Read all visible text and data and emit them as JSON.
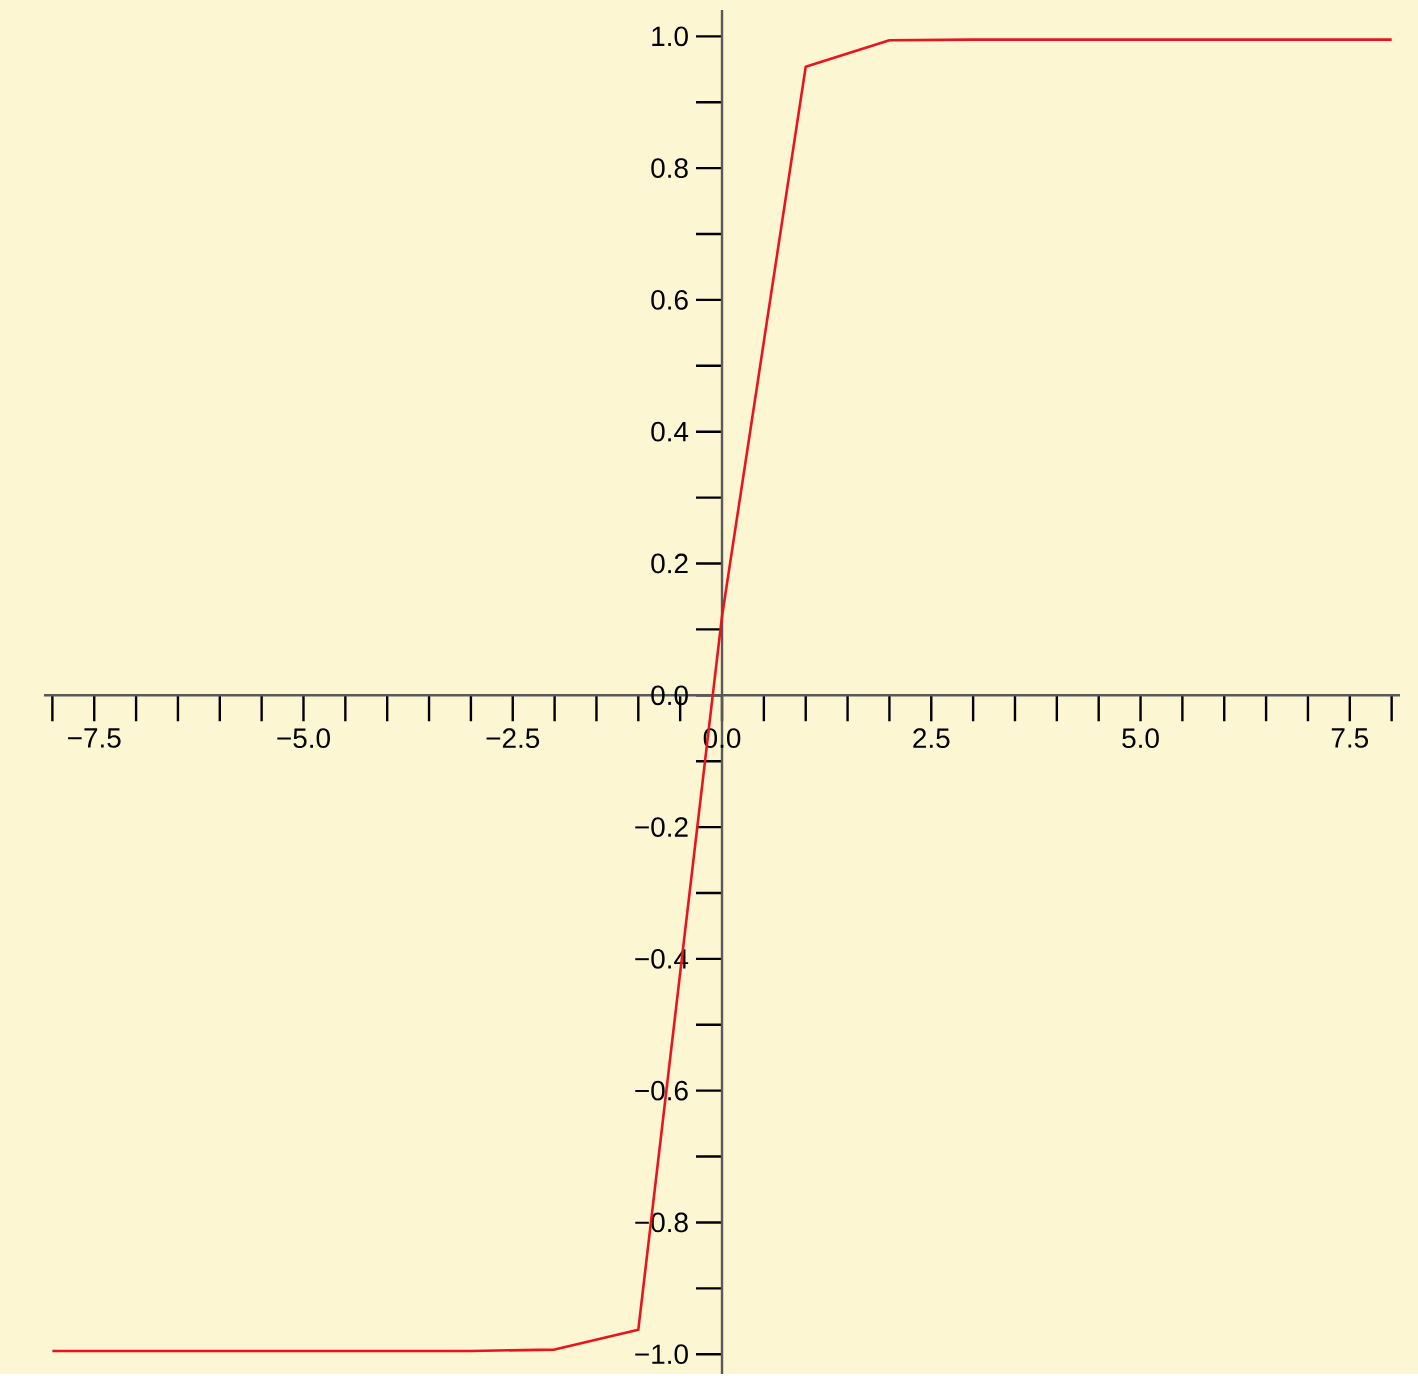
{
  "chart_data": {
    "type": "line",
    "x": [
      -8,
      -7,
      -6,
      -5,
      -4,
      -3,
      -2,
      -1,
      0,
      1,
      2,
      3,
      4,
      5,
      6,
      7,
      8
    ],
    "series": [
      {
        "color": "#e8141e",
        "values": [
          -0.995,
          -0.995,
          -0.995,
          -0.995,
          -0.995,
          -0.995,
          -0.993,
          -0.963,
          0.12,
          0.954,
          0.994,
          0.995,
          0.995,
          0.995,
          0.995,
          0.995,
          0.995
        ]
      }
    ],
    "xlim": [
      -8.1,
      8.1
    ],
    "ylim": [
      -1.03,
      1.04
    ],
    "xticks": [
      {
        "value": -8,
        "label": null
      },
      {
        "value": -7.5,
        "label": "−7.5"
      },
      {
        "value": -7,
        "label": null
      },
      {
        "value": -6.5,
        "label": null
      },
      {
        "value": -6,
        "label": null
      },
      {
        "value": -5.5,
        "label": null
      },
      {
        "value": -5,
        "label": "−5.0"
      },
      {
        "value": -4.5,
        "label": null
      },
      {
        "value": -4,
        "label": null
      },
      {
        "value": -3.5,
        "label": null
      },
      {
        "value": -3,
        "label": null
      },
      {
        "value": -2.5,
        "label": "−2.5"
      },
      {
        "value": -2,
        "label": null
      },
      {
        "value": -1.5,
        "label": null
      },
      {
        "value": -1,
        "label": null
      },
      {
        "value": -0.5,
        "label": null
      },
      {
        "value": 0,
        "label": "0.0"
      },
      {
        "value": 0.5,
        "label": null
      },
      {
        "value": 1,
        "label": null
      },
      {
        "value": 1.5,
        "label": null
      },
      {
        "value": 2,
        "label": null
      },
      {
        "value": 2.5,
        "label": "2.5"
      },
      {
        "value": 3,
        "label": null
      },
      {
        "value": 3.5,
        "label": null
      },
      {
        "value": 4,
        "label": null
      },
      {
        "value": 4.5,
        "label": null
      },
      {
        "value": 5,
        "label": "5.0"
      },
      {
        "value": 5.5,
        "label": null
      },
      {
        "value": 6,
        "label": null
      },
      {
        "value": 6.5,
        "label": null
      },
      {
        "value": 7,
        "label": null
      },
      {
        "value": 7.5,
        "label": "7.5"
      },
      {
        "value": 8,
        "label": null
      }
    ],
    "yticks": [
      {
        "value": -1,
        "label": "−1.0"
      },
      {
        "value": -0.9,
        "label": null
      },
      {
        "value": -0.8,
        "label": "−0.8"
      },
      {
        "value": -0.7,
        "label": null
      },
      {
        "value": -0.6,
        "label": "−0.6"
      },
      {
        "value": -0.5,
        "label": null
      },
      {
        "value": -0.4,
        "label": "−0.4"
      },
      {
        "value": -0.3,
        "label": null
      },
      {
        "value": -0.2,
        "label": "−0.2"
      },
      {
        "value": -0.1,
        "label": null
      },
      {
        "value": 0,
        "label": "0.0"
      },
      {
        "value": 0.1,
        "label": null
      },
      {
        "value": 0.2,
        "label": "0.2"
      },
      {
        "value": 0.3,
        "label": null
      },
      {
        "value": 0.4,
        "label": "0.4"
      },
      {
        "value": 0.5,
        "label": null
      },
      {
        "value": 0.6,
        "label": "0.6"
      },
      {
        "value": 0.7,
        "label": null
      },
      {
        "value": 0.8,
        "label": "0.8"
      },
      {
        "value": 0.9,
        "label": null
      },
      {
        "value": 1,
        "label": "1.0"
      }
    ],
    "grid": false,
    "marker": "none",
    "line_style": "solid"
  }
}
